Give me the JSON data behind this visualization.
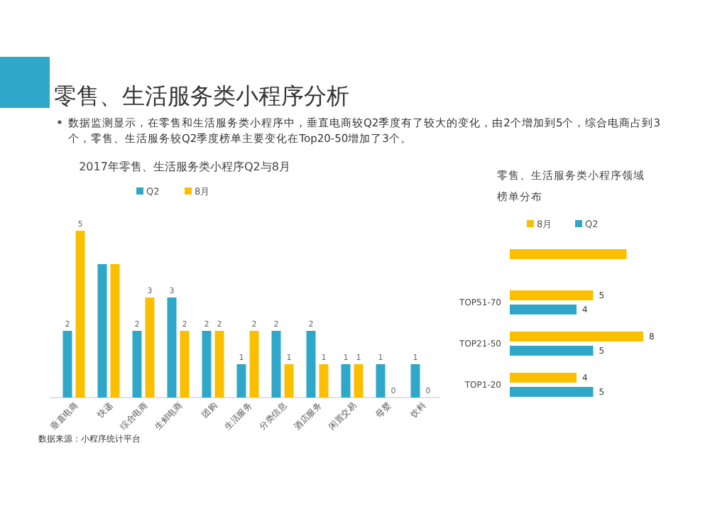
{
  "chart_data": [
    {
      "type": "other",
      "title": "零售、生活服务类小程序分析",
      "annotations": [
        "数据监测显示，在零售和生活服务类小程序中，垂直电商较Q2季度有了较大的变化，由2个增加到5个，综合电商占到3个，零售、生活服务较Q2季度榜单主要变化在Top20-50增加了3个。"
      ]
    },
    {
      "type": "bar",
      "title": "2017年零售、生活服务类小程序Q2与8月",
      "legend": "top",
      "categories": [
        "垂直电商",
        "快递",
        "综合电商",
        "生鲜电商",
        "团购",
        "生活服务",
        "分类信息",
        "酒店服务",
        "闲置交易",
        "母婴",
        "饮料"
      ],
      "series": [
        {
          "name": "Q2",
          "color": "#2ea7c9",
          "values": [
            2,
            4,
            2,
            3,
            2,
            1,
            2,
            2,
            1,
            1,
            1
          ],
          "value_labels": [
            "2",
            null,
            "2",
            "3",
            "2",
            "1",
            "2",
            "2",
            "1",
            "1",
            "1"
          ]
        },
        {
          "name": "8月",
          "color": "#fbbf00",
          "values": [
            5,
            4,
            3,
            2,
            2,
            2,
            1,
            1,
            1,
            0,
            0
          ],
          "value_labels": [
            "5",
            null,
            "3",
            "2",
            "2",
            "2",
            "1",
            "1",
            "1",
            "0",
            "0"
          ]
        }
      ],
      "annotations": [
        "数据来源：小程序统计平台"
      ]
    },
    {
      "type": "bar",
      "orientation": "horizontal",
      "title": "零售、生活服务类小程序领域榜单分布",
      "legend": "top",
      "categories": [
        null,
        "TOP51-70",
        "TOP21-50",
        "TOP1-20"
      ],
      "series": [
        {
          "name": "8月",
          "color": "#fbbf00",
          "values": [
            7,
            5,
            8,
            4
          ],
          "value_labels": [
            null,
            "5",
            "8",
            "4"
          ]
        },
        {
          "name": "Q2",
          "color": "#2ea7c9",
          "values": [
            null,
            4,
            5,
            5
          ],
          "value_labels": [
            null,
            "4",
            "5",
            "5"
          ]
        }
      ]
    }
  ]
}
